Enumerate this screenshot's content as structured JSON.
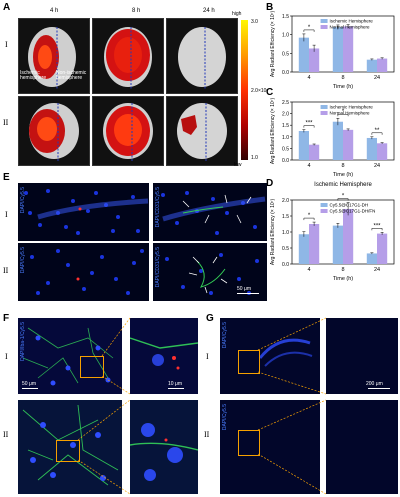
{
  "panel_labels": [
    "A",
    "B",
    "C",
    "D",
    "E",
    "F",
    "G"
  ],
  "row_labels": [
    "I",
    "II"
  ],
  "panel_a": {
    "times": [
      "4 h",
      "8 h",
      "24 h"
    ],
    "colorbar": {
      "high": "high",
      "mid": "2.0×10⁷",
      "top": "3.0",
      "bottom": "1.0",
      "low": "low"
    },
    "annotations": {
      "ischemic": "Ischemic\nhemisphere",
      "non_ischemic": "Non-ischemic\nhemisphere"
    }
  },
  "panel_e": {
    "stain_left": "DAPI/Cy5.5",
    "stain_right": "DAPI/CD31/Cy5.5",
    "stain_left_ii": "DAPI/Cy5.5",
    "stain_right_ii": "DAPI/CD31/Cy5.5",
    "scale": "50 μm"
  },
  "panel_f": {
    "stain": "DAPI/Iba-1/Cy5.5",
    "scale_left": "50 μm",
    "scale_right": "10 μm"
  },
  "panel_g": {
    "stain": "DAPI/Cy5.5",
    "stain_ii": "DAPI/Cy5.5",
    "scale": "200 μm"
  },
  "chart_data": [
    {
      "id": "B",
      "type": "bar",
      "title": "",
      "ylabel": "Avg Radiant Efficiency (× 10⁷)",
      "xlabel": "Time (h)",
      "categories": [
        "4",
        "8",
        "24"
      ],
      "ylim": [
        0,
        1.5
      ],
      "yticks": [
        0.0,
        0.5,
        1.0,
        1.5
      ],
      "series": [
        {
          "name": "Ischemic Hemisphere",
          "color": "#8fb7e6",
          "values": [
            0.92,
            1.2,
            0.33
          ],
          "err": [
            0.1,
            0.06,
            0.02
          ]
        },
        {
          "name": "Normal Hemisphere",
          "color": "#b59ee8",
          "values": [
            0.63,
            1.22,
            0.36
          ],
          "err": [
            0.09,
            0.05,
            0.02
          ]
        }
      ],
      "significance": [
        {
          "cat": 0,
          "label": "*"
        }
      ]
    },
    {
      "id": "C",
      "type": "bar",
      "title": "",
      "ylabel": "Avg Radiant Efficiency (× 10⁷)",
      "xlabel": "Time (h)",
      "categories": [
        "4",
        "8",
        "24"
      ],
      "ylim": [
        0,
        2.5
      ],
      "yticks": [
        0.0,
        0.5,
        1.0,
        1.5,
        2.0,
        2.5
      ],
      "series": [
        {
          "name": "Ischemic Hemisphere",
          "color": "#8fb7e6",
          "values": [
            1.25,
            1.65,
            0.95
          ],
          "err": [
            0.06,
            0.15,
            0.05
          ]
        },
        {
          "name": "Normal Hemisphere",
          "color": "#b59ee8",
          "values": [
            0.66,
            1.3,
            0.72
          ],
          "err": [
            0.03,
            0.04,
            0.03
          ]
        }
      ],
      "significance": [
        {
          "cat": 0,
          "label": "***"
        },
        {
          "cat": 1,
          "label": "*"
        },
        {
          "cat": 2,
          "label": "**"
        }
      ]
    },
    {
      "id": "D",
      "type": "bar",
      "title": "Ischemic Hemisphere",
      "ylabel": "Avg Radiant Efficiency (× 10⁷)",
      "xlabel": "Time (h)",
      "categories": [
        "4",
        "8",
        "24"
      ],
      "ylim": [
        0,
        2.0
      ],
      "yticks": [
        0.0,
        0.5,
        1.0,
        1.5,
        2.0
      ],
      "series": [
        {
          "name": "Cy5.5@C17G1-DH",
          "color": "#8fb7e6",
          "values": [
            0.93,
            1.2,
            0.33
          ],
          "err": [
            0.08,
            0.07,
            0.02
          ]
        },
        {
          "name": "Cy5.5@C17G1-DH/FN",
          "color": "#b59ee8",
          "values": [
            1.25,
            1.72,
            0.95
          ],
          "err": [
            0.06,
            0.2,
            0.04
          ]
        }
      ],
      "significance": [
        {
          "cat": 0,
          "label": "*"
        },
        {
          "cat": 1,
          "label": "*"
        },
        {
          "cat": 2,
          "label": "***"
        }
      ]
    }
  ]
}
